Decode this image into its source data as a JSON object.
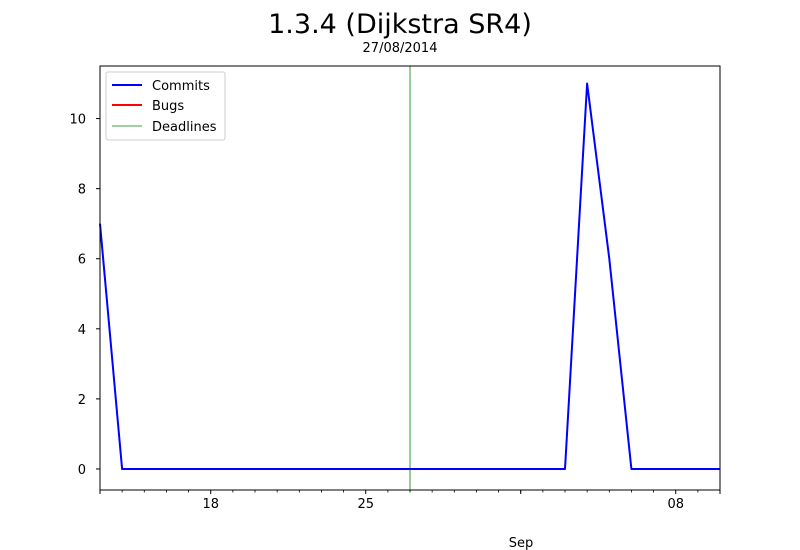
{
  "chart_data": {
    "type": "line",
    "title": "1.3.4 (Dijkstra SR4)",
    "subtitle": "27/08/2014",
    "xlabel": "",
    "ylabel": "",
    "x_range": [
      "2014-08-13",
      "2014-09-10"
    ],
    "ylim": [
      -0.6,
      11.5
    ],
    "y_ticks": [
      0,
      2,
      4,
      6,
      8,
      10
    ],
    "x_major_ticks": [
      {
        "date": "2014-08-18",
        "label": "18"
      },
      {
        "date": "2014-08-25",
        "label": "25"
      },
      {
        "date": "2014-09-08",
        "label": "08"
      }
    ],
    "x_minor_ticks": [
      "2014-08-14",
      "2014-08-15",
      "2014-08-16",
      "2014-08-17",
      "2014-08-19",
      "2014-08-20",
      "2014-08-21",
      "2014-08-22",
      "2014-08-23",
      "2014-08-24",
      "2014-08-26",
      "2014-08-27",
      "2014-08-28",
      "2014-08-29",
      "2014-08-30",
      "2014-08-31",
      "2014-09-01",
      "2014-09-02",
      "2014-09-03",
      "2014-09-04",
      "2014-09-05",
      "2014-09-06",
      "2014-09-07",
      "2014-09-09"
    ],
    "x_month_ticks": [
      "2014-09-01"
    ],
    "x_month_label": "Sep",
    "grid": false,
    "legend_position": "top-left",
    "series": [
      {
        "name": "Commits",
        "color": "#0000ff",
        "points": [
          {
            "x": "2014-08-13",
            "y": 7
          },
          {
            "x": "2014-08-14",
            "y": 0
          },
          {
            "x": "2014-09-03",
            "y": 0
          },
          {
            "x": "2014-09-04",
            "y": 11
          },
          {
            "x": "2014-09-05",
            "y": 6
          },
          {
            "x": "2014-09-06",
            "y": 0
          },
          {
            "x": "2014-09-10",
            "y": 0
          }
        ]
      },
      {
        "name": "Bugs",
        "color": "#ff0000",
        "points": []
      }
    ],
    "deadlines": {
      "name": "Deadlines",
      "color": "#008000",
      "dates": [
        "2014-08-27"
      ]
    }
  }
}
